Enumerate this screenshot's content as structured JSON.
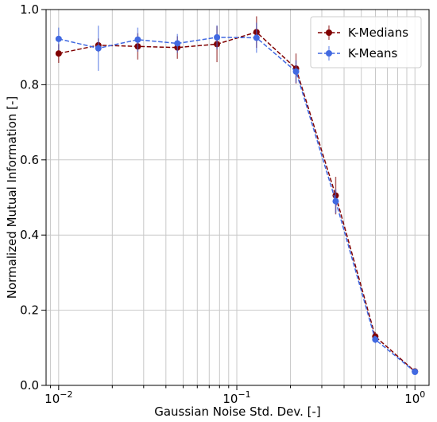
{
  "chart_data": {
    "type": "line",
    "xlabel": "Gaussian Noise Std. Dev. [-]",
    "ylabel": "Normalized Mutual Information [-]",
    "x_scale": "log",
    "xlim": [
      0.0085,
      1.2
    ],
    "ylim": [
      0.0,
      1.0
    ],
    "x_ticks": [
      {
        "value": 0.01,
        "base": "10",
        "exp": "−2"
      },
      {
        "value": 0.1,
        "base": "10",
        "exp": "−1"
      },
      {
        "value": 1,
        "base": "10",
        "exp": "0"
      }
    ],
    "y_ticks": [
      {
        "value": 0.0,
        "label": "0.0"
      },
      {
        "value": 0.2,
        "label": "0.2"
      },
      {
        "value": 0.4,
        "label": "0.4"
      },
      {
        "value": 0.6,
        "label": "0.6"
      },
      {
        "value": 0.8,
        "label": "0.8"
      },
      {
        "value": 1.0,
        "label": "1.0"
      }
    ],
    "grid": true,
    "legend_position": "top-right",
    "x": [
      0.01,
      0.0167,
      0.0278,
      0.0464,
      0.0774,
      0.129,
      0.215,
      0.359,
      0.599,
      1.0
    ],
    "series": [
      {
        "name": "K-Medians",
        "color": "#800000",
        "values": [
          0.883,
          0.905,
          0.902,
          0.899,
          0.908,
          0.94,
          0.843,
          0.505,
          0.13,
          0.037
        ],
        "errors": [
          0.025,
          0.018,
          0.035,
          0.03,
          0.048,
          0.042,
          0.04,
          0.05,
          0.012,
          0.005
        ]
      },
      {
        "name": "K-Means",
        "color": "#4169E1",
        "values": [
          0.922,
          0.897,
          0.92,
          0.91,
          0.926,
          0.925,
          0.835,
          0.49,
          0.122,
          0.036
        ],
        "errors": [
          0.03,
          0.06,
          0.032,
          0.025,
          0.032,
          0.04,
          0.03,
          0.032,
          0.01,
          0.005
        ]
      }
    ]
  }
}
